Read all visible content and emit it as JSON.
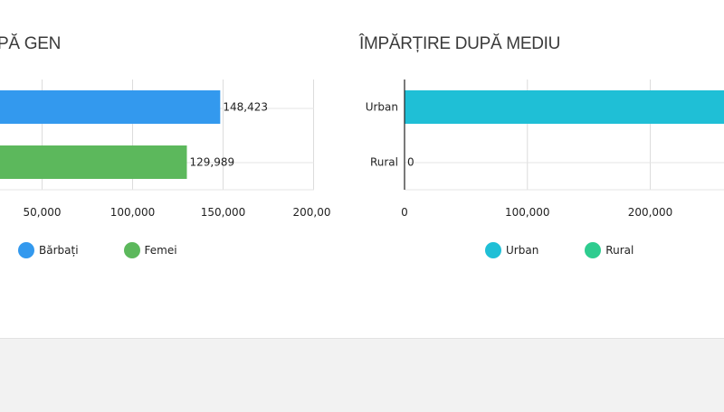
{
  "colors": {
    "barbati": "#3399ee",
    "femei": "#5cb85c",
    "urban": "#1fbfd6",
    "rural": "#2ecc8f"
  },
  "chart_data": [
    {
      "type": "bar",
      "orientation": "horizontal",
      "title": "PĂ GEN",
      "categories": [
        "Bărbați",
        "Femei"
      ],
      "values": [
        148423,
        129989
      ],
      "value_labels": [
        "148,423",
        "129,989"
      ],
      "xticks": [
        "50,000",
        "100,000",
        "150,000",
        "200,00"
      ],
      "xlim": [
        0,
        200000
      ],
      "grid": true,
      "legend": {
        "placement": "bottom",
        "items": [
          "Bărbați",
          "Femei"
        ]
      }
    },
    {
      "type": "bar",
      "orientation": "horizontal",
      "title": "ÎMPĂRȚIRE DUPĂ MEDIU",
      "categories": [
        "Urban",
        "Rural"
      ],
      "values": [
        278412,
        0
      ],
      "value_labels": [
        "",
        "0"
      ],
      "xticks": [
        "0",
        "100,000",
        "200,000"
      ],
      "xlim": [
        0,
        300000
      ],
      "grid": true,
      "legend": {
        "placement": "bottom",
        "items": [
          "Urban",
          "Rural"
        ]
      }
    }
  ]
}
